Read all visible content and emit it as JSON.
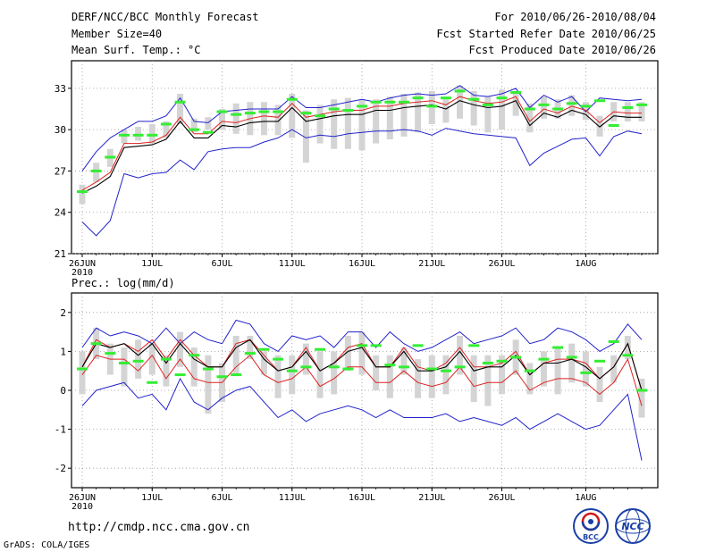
{
  "header": {
    "title": "DERF/NCC/BCC Monthly Forecast",
    "member_size": "Member Size=40",
    "variable": "Mean Surf. Temp.: °C",
    "period": "For 2010/06/26-2010/08/04",
    "refer_date": "Fcst Started Refer Date 2010/06/25",
    "produced_date": "Fcst Produced Date 2010/06/26"
  },
  "footer": {
    "url": "http://cmdp.ncc.cma.gov.cn",
    "grads": "GrADS: COLA/IGES",
    "bcc_logo_text": "BCC",
    "ncc_logo_text": "NCC"
  },
  "colors": {
    "max_line": "#2222cc",
    "min_line": "#2222cc",
    "mean_line": "#000000",
    "median_line": "#dd2222",
    "box": "#d4d4d4",
    "marker": "#33ee33"
  },
  "chart_data": [
    {
      "type": "line",
      "title": "Mean Surf. Temp.: °C",
      "ylabel": "",
      "xlabel": "",
      "ylim": [
        21,
        35
      ],
      "yticks": [
        21,
        24,
        27,
        30,
        33
      ],
      "xlim": [
        0,
        40
      ],
      "xticks": [
        {
          "day": 0,
          "label": "26JUN",
          "sub": "2010"
        },
        {
          "day": 5,
          "label": "1JUL"
        },
        {
          "day": 10,
          "label": "6JUL"
        },
        {
          "day": 15,
          "label": "11JUL"
        },
        {
          "day": 20,
          "label": "16JUL"
        },
        {
          "day": 25,
          "label": "21JUL"
        },
        {
          "day": 30,
          "label": "26JUL"
        },
        {
          "day": 36,
          "label": "1AUG"
        }
      ],
      "grid": "dotted",
      "series": [
        {
          "name": "max",
          "values": [
            27.0,
            28.4,
            29.4,
            30.0,
            30.6,
            30.6,
            31.0,
            32.3,
            30.6,
            30.5,
            31.3,
            31.4,
            31.5,
            31.5,
            31.5,
            32.4,
            31.6,
            31.6,
            31.8,
            32.0,
            32.2,
            32.0,
            32.3,
            32.5,
            32.6,
            32.5,
            32.6,
            33.2,
            32.5,
            32.4,
            32.6,
            33.0,
            31.6,
            32.5,
            32.0,
            32.4,
            31.3,
            32.3,
            32.2,
            32.1,
            32.2
          ]
        },
        {
          "name": "min",
          "values": [
            23.3,
            22.3,
            23.4,
            26.8,
            26.5,
            26.8,
            26.9,
            27.8,
            27.1,
            28.4,
            28.6,
            28.7,
            28.7,
            29.1,
            29.4,
            30.0,
            29.4,
            29.6,
            29.5,
            29.7,
            29.8,
            29.9,
            29.9,
            30.0,
            29.9,
            29.6,
            30.1,
            29.9,
            29.7,
            29.6,
            29.5,
            29.4,
            27.4,
            28.3,
            28.8,
            29.3,
            29.4,
            28.1,
            29.5,
            29.9,
            29.7
          ]
        },
        {
          "name": "ensemble mean",
          "values": [
            25.4,
            25.9,
            26.6,
            28.7,
            28.8,
            28.9,
            29.3,
            30.6,
            29.4,
            29.4,
            30.3,
            30.2,
            30.5,
            30.6,
            30.6,
            31.6,
            30.6,
            30.8,
            31.0,
            31.1,
            31.1,
            31.4,
            31.4,
            31.6,
            31.7,
            31.8,
            31.5,
            32.1,
            31.8,
            31.6,
            31.7,
            32.1,
            30.3,
            31.2,
            30.9,
            31.4,
            31.1,
            30.2,
            31.0,
            30.9,
            30.9
          ]
        },
        {
          "name": "median",
          "values": [
            25.6,
            26.2,
            26.9,
            29.0,
            29.0,
            29.1,
            29.6,
            30.9,
            29.7,
            29.7,
            30.6,
            30.5,
            30.8,
            31.0,
            30.9,
            31.9,
            30.9,
            31.1,
            31.3,
            31.4,
            31.4,
            31.7,
            31.7,
            31.9,
            32.0,
            32.1,
            31.8,
            32.4,
            32.1,
            31.9,
            32.0,
            32.4,
            30.6,
            31.5,
            31.2,
            31.7,
            31.4,
            30.5,
            31.3,
            31.2,
            31.2
          ]
        },
        {
          "name": "box_low",
          "values": [
            24.6,
            26.2,
            27.3,
            29.0,
            29.2,
            29.0,
            29.4,
            30.4,
            29.8,
            30.0,
            30.0,
            29.7,
            29.6,
            29.6,
            29.6,
            29.4,
            27.6,
            29.0,
            28.6,
            28.6,
            28.5,
            29.0,
            29.3,
            29.5,
            29.8,
            30.4,
            30.5,
            30.8,
            30.3,
            29.8,
            30.0,
            31.0,
            29.8,
            30.8,
            30.8,
            31.0,
            30.7,
            29.5,
            30.6,
            30.6,
            30.6
          ]
        },
        {
          "name": "box_high",
          "values": [
            26.0,
            27.6,
            28.6,
            30.0,
            30.2,
            30.4,
            30.6,
            32.6,
            30.8,
            30.9,
            31.5,
            31.9,
            32.0,
            32.0,
            31.8,
            32.6,
            31.4,
            31.8,
            32.2,
            32.3,
            32.2,
            32.2,
            32.4,
            32.6,
            32.7,
            32.8,
            32.2,
            33.2,
            32.8,
            32.4,
            32.9,
            32.8,
            31.9,
            32.4,
            32.2,
            32.5,
            32.0,
            31.0,
            32.0,
            32.0,
            32.0
          ]
        },
        {
          "name": "observed marker",
          "values": [
            25.5,
            27.0,
            28.0,
            29.6,
            29.6,
            29.6,
            30.4,
            32.0,
            30.0,
            29.8,
            31.3,
            31.1,
            31.2,
            31.3,
            31.3,
            32.2,
            31.2,
            31.0,
            31.5,
            31.4,
            31.7,
            32.0,
            32.0,
            32.0,
            32.3,
            31.7,
            32.3,
            32.8,
            32.2,
            31.8,
            32.3,
            32.7,
            31.5,
            31.8,
            31.5,
            31.9,
            31.7,
            32.1,
            30.3,
            31.6,
            31.8
          ]
        }
      ]
    },
    {
      "type": "line",
      "title": "Prec.: log(mm/d)",
      "ylabel": "",
      "xlabel": "",
      "ylim": [
        -2.5,
        2.5
      ],
      "yticks": [
        -2,
        -1,
        0,
        1,
        2
      ],
      "xlim": [
        0,
        40
      ],
      "xticks": [
        {
          "day": 0,
          "label": "26JUN",
          "sub": "2010"
        },
        {
          "day": 5,
          "label": "1JUL"
        },
        {
          "day": 10,
          "label": "6JUL"
        },
        {
          "day": 15,
          "label": "11JUL"
        },
        {
          "day": 20,
          "label": "16JUL"
        },
        {
          "day": 25,
          "label": "21JUL"
        },
        {
          "day": 30,
          "label": "26JUL"
        },
        {
          "day": 36,
          "label": "1AUG"
        }
      ],
      "grid": "dotted",
      "series": [
        {
          "name": "max",
          "values": [
            1.1,
            1.6,
            1.4,
            1.5,
            1.4,
            1.2,
            1.6,
            1.2,
            1.5,
            1.3,
            1.2,
            1.8,
            1.7,
            1.2,
            1.0,
            1.4,
            1.3,
            1.4,
            1.1,
            1.5,
            1.5,
            1.1,
            1.5,
            1.2,
            1.0,
            1.1,
            1.3,
            1.5,
            1.2,
            1.3,
            1.4,
            1.6,
            1.2,
            1.3,
            1.6,
            1.5,
            1.3,
            1.0,
            1.2,
            1.7,
            1.3
          ]
        },
        {
          "name": "min",
          "values": [
            -0.4,
            0.0,
            0.1,
            0.2,
            -0.2,
            -0.1,
            -0.5,
            0.3,
            -0.3,
            -0.5,
            -0.2,
            0.0,
            0.1,
            -0.3,
            -0.7,
            -0.5,
            -0.8,
            -0.6,
            -0.5,
            -0.4,
            -0.5,
            -0.7,
            -0.5,
            -0.7,
            -0.7,
            -0.7,
            -0.6,
            -0.8,
            -0.7,
            -0.8,
            -0.9,
            -0.7,
            -1.0,
            -0.8,
            -0.6,
            -0.8,
            -1.0,
            -0.9,
            -0.5,
            -0.1,
            -1.8
          ]
        },
        {
          "name": "ensemble mean",
          "values": [
            0.6,
            1.2,
            1.1,
            1.2,
            0.9,
            1.2,
            0.7,
            1.2,
            0.8,
            0.6,
            0.6,
            1.1,
            1.3,
            0.8,
            0.5,
            0.6,
            1.0,
            0.5,
            0.7,
            1.0,
            1.1,
            0.6,
            0.6,
            1.0,
            0.5,
            0.5,
            0.6,
            1.0,
            0.5,
            0.6,
            0.6,
            0.9,
            0.4,
            0.7,
            0.7,
            0.8,
            0.6,
            0.3,
            0.6,
            1.2,
            0.0
          ]
        },
        {
          "name": "median",
          "values": [
            0.6,
            1.3,
            1.1,
            1.2,
            1.0,
            1.3,
            0.8,
            1.3,
            0.9,
            0.6,
            0.6,
            1.2,
            1.3,
            0.9,
            0.5,
            0.6,
            1.1,
            0.5,
            0.7,
            1.1,
            1.2,
            0.6,
            0.6,
            1.1,
            0.6,
            0.5,
            0.7,
            1.1,
            0.6,
            0.6,
            0.7,
            1.0,
            0.4,
            0.7,
            0.8,
            0.8,
            0.7,
            0.3,
            0.6,
            1.2,
            0.0
          ]
        },
        {
          "name": "lower",
          "values": [
            0.4,
            0.9,
            0.8,
            0.8,
            0.5,
            0.9,
            0.3,
            0.8,
            0.3,
            0.2,
            0.2,
            0.6,
            0.9,
            0.4,
            0.2,
            0.3,
            0.6,
            0.1,
            0.3,
            0.6,
            0.6,
            0.2,
            0.2,
            0.5,
            0.2,
            0.1,
            0.2,
            0.6,
            0.1,
            0.2,
            0.2,
            0.5,
            0.0,
            0.2,
            0.3,
            0.3,
            0.2,
            -0.1,
            0.2,
            0.8,
            -0.4
          ]
        },
        {
          "name": "box_low",
          "values": [
            -0.1,
            0.8,
            0.4,
            0.1,
            0.3,
            0.4,
            0.1,
            0.6,
            0.1,
            -0.6,
            -0.3,
            0.4,
            0.8,
            0.4,
            -0.2,
            -0.1,
            0.4,
            -0.2,
            -0.1,
            0.5,
            0.4,
            0.0,
            -0.2,
            0.4,
            -0.2,
            -0.2,
            -0.1,
            0.4,
            -0.3,
            -0.4,
            -0.1,
            0.4,
            -0.1,
            0.1,
            -0.1,
            0.2,
            0.1,
            -0.3,
            0.2,
            0.8,
            -0.7
          ]
        },
        {
          "name": "box_high",
          "values": [
            1.0,
            1.6,
            1.2,
            1.1,
            1.3,
            1.2,
            0.9,
            1.5,
            1.1,
            0.9,
            0.7,
            1.4,
            1.4,
            1.0,
            0.9,
            0.9,
            1.2,
            1.0,
            1.0,
            1.4,
            1.5,
            0.9,
            0.9,
            1.1,
            0.8,
            0.9,
            0.9,
            1.4,
            0.9,
            0.9,
            0.9,
            1.3,
            0.7,
            1.0,
            1.1,
            1.2,
            1.0,
            0.6,
            0.9,
            1.4,
            0.3
          ]
        },
        {
          "name": "observed marker",
          "values": [
            0.55,
            1.2,
            0.95,
            0.7,
            0.75,
            0.2,
            0.8,
            0.4,
            0.9,
            0.55,
            0.35,
            0.4,
            0.95,
            1.05,
            0.8,
            0.5,
            0.6,
            1.05,
            0.6,
            0.55,
            1.15,
            1.15,
            0.65,
            0.6,
            1.15,
            0.55,
            0.5,
            0.6,
            1.15,
            0.7,
            0.75,
            0.85,
            0.5,
            0.8,
            1.1,
            0.85,
            0.45,
            0.75,
            1.25,
            0.9,
            0.0
          ]
        }
      ]
    }
  ]
}
